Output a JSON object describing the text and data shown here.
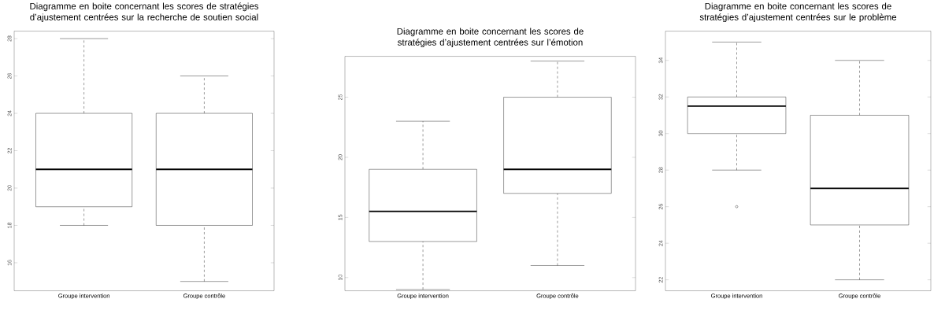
{
  "chart_data": [
    {
      "type": "box",
      "title": "Diagramme en boite concernant les scores de stratégies d’ajustement centrées sur la recherche de soutien social",
      "categories": [
        "Groupe intervention",
        "Groupe contrôle"
      ],
      "boxes": [
        {
          "low": 18,
          "q1": 19,
          "median": 21,
          "q3": 24,
          "high": 28
        },
        {
          "low": 15,
          "q1": 18,
          "median": 21,
          "q3": 24,
          "high": 26
        }
      ],
      "ylim": [
        14.5,
        28.4
      ],
      "yticks": [
        16,
        18,
        20,
        22,
        24,
        26,
        28
      ]
    },
    {
      "type": "box",
      "title": "Diagramme en boite concernant les scores de stratégies d’ajustement centrées sur l’émotion",
      "categories": [
        "Groupe intervention",
        "Groupe contrôle"
      ],
      "boxes": [
        {
          "low": 9,
          "q1": 13,
          "median": 15.5,
          "q3": 19,
          "high": 23
        },
        {
          "low": 11,
          "q1": 17,
          "median": 19,
          "q3": 25,
          "high": 28
        }
      ],
      "ylim": [
        8.9,
        28.4
      ],
      "yticks": [
        10,
        15,
        20,
        25
      ]
    },
    {
      "type": "box",
      "title": "Diagramme en boite concernant les scores de stratégies d’ajustement centrées sur le problème",
      "categories": [
        "Groupe intervention",
        "Groupe contrôle"
      ],
      "boxes": [
        {
          "low": 28,
          "q1": 30,
          "median": 31.5,
          "q3": 32,
          "high": 35,
          "outliers": [
            26
          ]
        },
        {
          "low": 22,
          "q1": 25,
          "median": 27,
          "q3": 31,
          "high": 34
        }
      ],
      "ylim": [
        21.4,
        35.6
      ],
      "yticks": [
        22,
        24,
        26,
        28,
        30,
        32,
        34
      ]
    }
  ]
}
